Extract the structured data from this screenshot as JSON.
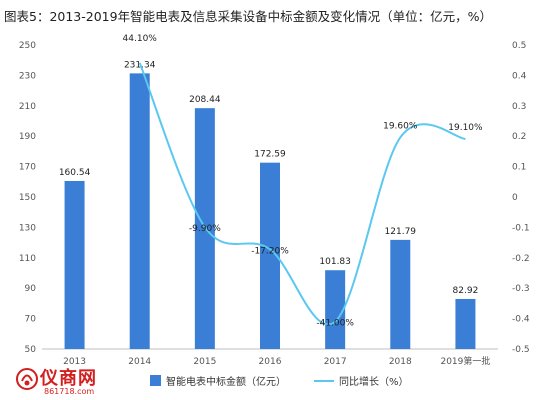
{
  "title": "图表5：2013-2019年智能电表及信息采集设备中标金额及变化情况（单位：亿元，%）",
  "logo": {
    "name": "仪商网",
    "url": "861718.com"
  },
  "colors": {
    "bar": "#3a7fd5",
    "line": "#5bc8f0"
  },
  "chart_data": {
    "type": "bar",
    "categories": [
      "2013",
      "2014",
      "2015",
      "2016",
      "2017",
      "2018",
      "2019第一批"
    ],
    "series": [
      {
        "name": "智能电表中标金额（亿元）",
        "type": "bar",
        "axis": "left",
        "values": [
          160.54,
          231.34,
          208.44,
          172.59,
          101.83,
          121.79,
          82.92
        ],
        "labels": [
          "160.54",
          "231.34",
          "208.44",
          "172.59",
          "101.83",
          "121.79",
          "82.92"
        ]
      },
      {
        "name": "同比增长（%）",
        "type": "line",
        "axis": "right",
        "values": [
          null,
          0.441,
          -0.099,
          -0.172,
          -0.41,
          0.196,
          0.191
        ],
        "labels": [
          "",
          "44.10%",
          "-9.90%",
          "-17.20%",
          "-41.00%",
          "19.60%",
          "19.10%"
        ]
      }
    ],
    "y_left": {
      "lim": [
        50,
        250
      ],
      "ticks": [
        "50",
        "70",
        "90",
        "110",
        "130",
        "150",
        "170",
        "190",
        "210",
        "230",
        "250"
      ]
    },
    "y_right": {
      "lim": [
        -0.5,
        0.5
      ],
      "ticks": [
        "-0.5",
        "-0.4",
        "-0.3",
        "-0.2",
        "-0.1",
        "0",
        "0.1",
        "0.2",
        "0.3",
        "0.4",
        "0.5"
      ]
    },
    "grid": false,
    "legend": "bottom"
  }
}
